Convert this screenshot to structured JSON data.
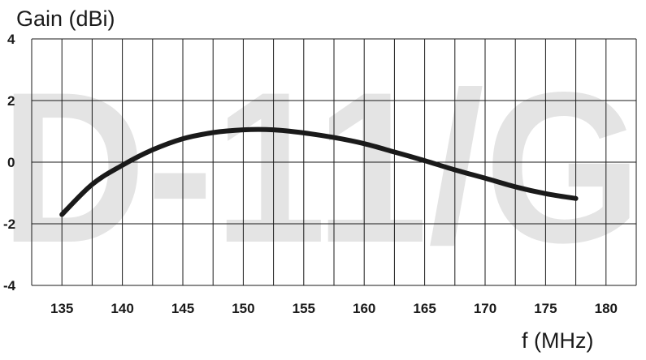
{
  "watermark": "D-11/G",
  "chart_data": {
    "type": "line",
    "title": "",
    "xlabel": "f (MHz)",
    "ylabel": "Gain (dBi)",
    "xlim": [
      132.5,
      182.5
    ],
    "ylim": [
      -4,
      4
    ],
    "x_ticks": [
      135,
      140,
      145,
      150,
      155,
      160,
      165,
      170,
      175,
      180
    ],
    "y_ticks": [
      4,
      2,
      0,
      -2,
      -4
    ],
    "grid": true,
    "colors": {
      "line": "#1a1a1a",
      "grid": "#1a1a1a",
      "watermark": "#e4e4e4"
    },
    "series": [
      {
        "x": [
          135,
          137.5,
          140,
          142.5,
          145,
          147.5,
          150,
          152.5,
          155,
          157.5,
          160,
          162.5,
          165,
          167.5,
          170,
          172.5,
          175,
          177.5
        ],
        "values": [
          -1.7,
          -0.72,
          -0.1,
          0.4,
          0.76,
          0.96,
          1.05,
          1.05,
          0.95,
          0.8,
          0.6,
          0.33,
          0.05,
          -0.25,
          -0.52,
          -0.8,
          -1.02,
          -1.18
        ]
      }
    ]
  }
}
